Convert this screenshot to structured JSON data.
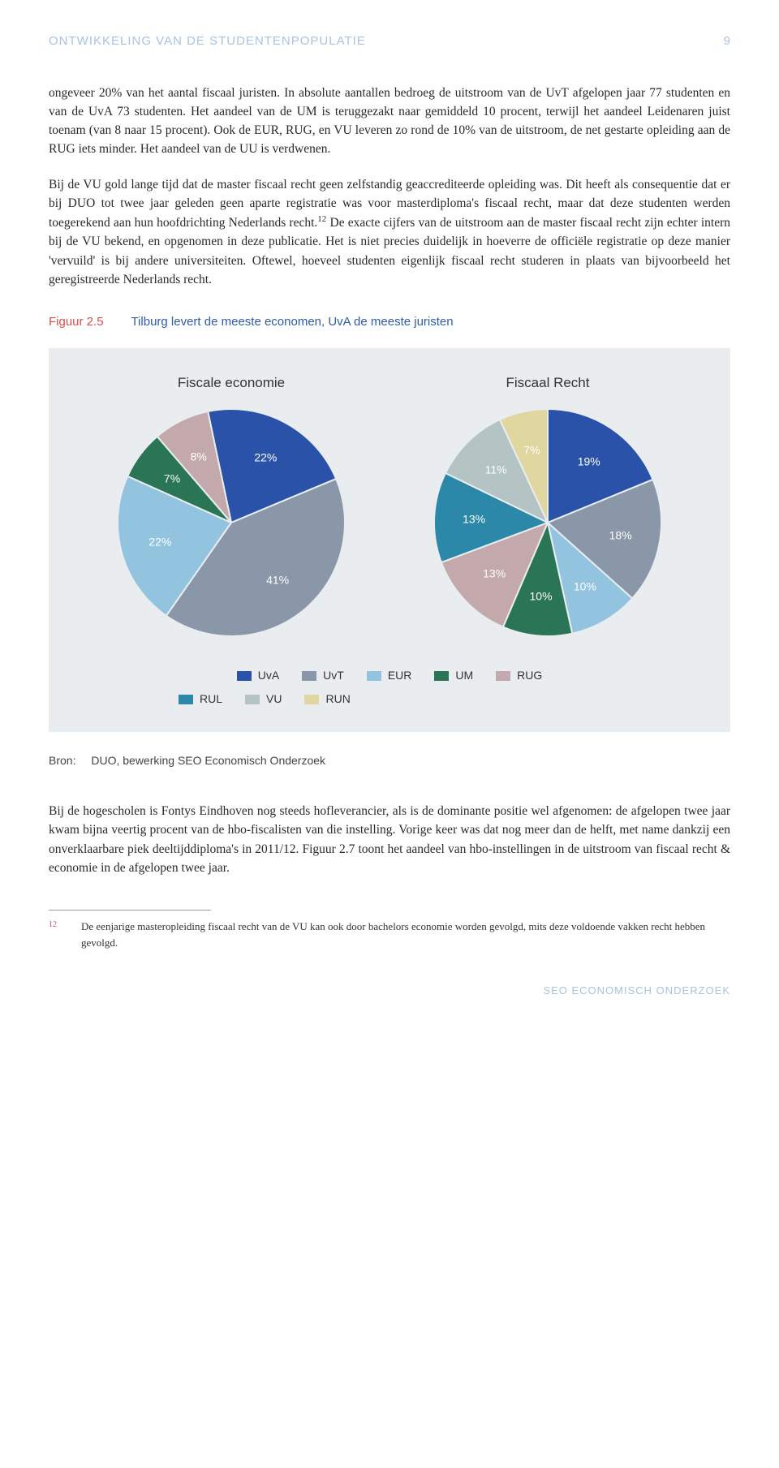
{
  "header": {
    "title": "ONTWIKKELING VAN DE STUDENTENPOPULATIE",
    "page_number": "9"
  },
  "paragraphs": {
    "p1": "ongeveer 20% van het aantal fiscaal juristen. In absolute aantallen bedroeg de uitstroom van de UvT afgelopen jaar 77 studenten en van de UvA 73 studenten. Het aandeel van de UM is teruggezakt naar gemiddeld 10 procent, terwijl het aandeel Leidenaren juist toenam (van 8 naar 15 procent). Ook de EUR, RUG, en VU leveren zo rond de 10% van de uitstroom, de net gestarte opleiding aan de RUG iets minder. Het aandeel van de UU is verdwenen.",
    "p2a": "Bij de VU gold lange tijd dat de master fiscaal recht geen zelfstandig geaccrediteerde opleiding was. Dit heeft als consequentie dat er bij DUO tot twee jaar geleden geen aparte registratie was voor masterdiploma's fiscaal recht, maar dat deze studenten werden toegerekend aan hun hoofdrichting Nederlands recht.",
    "p2b": " De exacte cijfers van de uitstroom aan de master fiscaal recht zijn echter intern bij de VU bekend, en opgenomen in deze publicatie. Het is niet precies duidelijk in hoeverre de officiële registratie op deze manier 'vervuild' is bij andere universiteiten. Oftewel, hoeveel studenten eigenlijk fiscaal recht studeren in plaats van bijvoorbeeld het geregistreerde Nederlands recht.",
    "p3": "Bij de hogescholen is Fontys Eindhoven nog steeds hofleverancier, als is de dominante positie wel afgenomen: de afgelopen twee jaar kwam bijna veertig procent van de hbo-fiscalisten van die instelling. Vorige keer was dat nog meer dan de helft, met name dankzij een onverklaarbare piek deeltijddiploma's in 2011/12. Figuur 2.7 toont het aandeel van hbo-instellingen in de uitstroom van fiscaal recht & economie in de afgelopen twee jaar."
  },
  "figure": {
    "number": "Figuur 2.5",
    "title": "Tilburg levert de meeste economen, UvA de meeste juristen",
    "chart1_title": "Fiscale economie",
    "chart2_title": "Fiscaal Recht",
    "bron_label": "Bron:",
    "bron_text": "DUO, bewerking SEO Economisch Onderzoek"
  },
  "charts": {
    "economie": {
      "type": "pie",
      "radius": 140,
      "background": "#e9edf0",
      "slices": [
        {
          "label": "22%",
          "value": 22,
          "color": "#2a52a8"
        },
        {
          "label": "41%",
          "value": 41,
          "color": "#8a97a8"
        },
        {
          "label": "22%",
          "value": 22,
          "color": "#92c4df"
        },
        {
          "label": "7%",
          "value": 7,
          "color": "#2a7555"
        },
        {
          "label": "8%",
          "value": 8,
          "color": "#c4a9ac"
        }
      ]
    },
    "recht": {
      "type": "pie",
      "radius": 140,
      "background": "#e9edf0",
      "slices": [
        {
          "label": "19%",
          "value": 19,
          "color": "#2a52a8"
        },
        {
          "label": "18%",
          "value": 18,
          "color": "#8a97a8"
        },
        {
          "label": "10%",
          "value": 10,
          "color": "#92c4df"
        },
        {
          "label": "10%",
          "value": 10,
          "color": "#2a7555"
        },
        {
          "label": "13%",
          "value": 13,
          "color": "#c4a9ac"
        },
        {
          "label": "13%",
          "value": 13,
          "color": "#2b88a8"
        },
        {
          "label": "11%",
          "value": 11,
          "color": "#b4c3c4"
        },
        {
          "label": "7%",
          "value": 7,
          "color": "#e0d7a0"
        }
      ]
    }
  },
  "legend": [
    {
      "label": "UvA",
      "color": "#2a52a8"
    },
    {
      "label": "UvT",
      "color": "#8a97a8"
    },
    {
      "label": "EUR",
      "color": "#92c4df"
    },
    {
      "label": "UM",
      "color": "#2a7555"
    },
    {
      "label": "RUG",
      "color": "#c4a9ac"
    },
    {
      "label": "RUL",
      "color": "#2b88a8"
    },
    {
      "label": "VU",
      "color": "#b4c3c4"
    },
    {
      "label": "RUN",
      "color": "#e0d7a0"
    }
  ],
  "footnote": {
    "num": "12",
    "text": "De eenjarige masteropleiding fiscaal recht van de VU kan ook door bachelors economie worden gevolgd, mits deze voldoende vakken recht hebben gevolgd."
  },
  "footer": "SEO ECONOMISCH ONDERZOEK"
}
